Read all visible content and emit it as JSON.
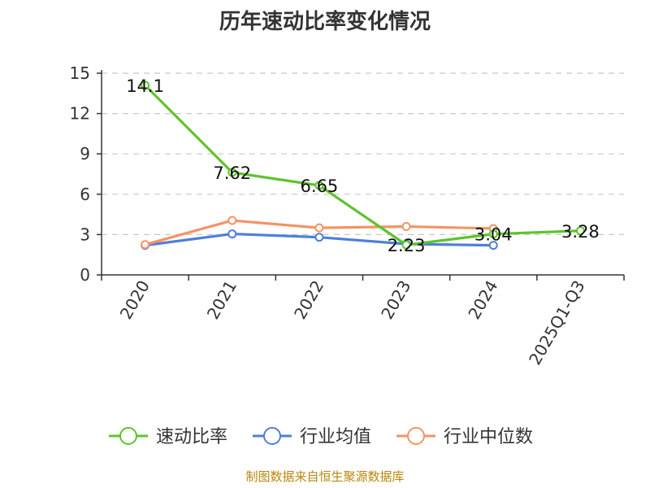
{
  "chart_data": {
    "type": "line",
    "title": "历年速动比率变化情况",
    "categories": [
      "2020",
      "2021",
      "2022",
      "2023",
      "2024",
      "2025Q1-Q3"
    ],
    "ylim": [
      0,
      15
    ],
    "yticks": [
      0,
      3,
      6,
      9,
      12,
      15
    ],
    "grid": true,
    "legend_position": "bottom",
    "series": [
      {
        "name": "速动比率",
        "color": "#5dc42b",
        "values": [
          14.1,
          7.62,
          6.65,
          2.23,
          3.04,
          3.28
        ],
        "labels": [
          "14.1",
          "7.62",
          "6.65",
          "2.23",
          "3.04",
          "3.28"
        ]
      },
      {
        "name": "行业均值",
        "color": "#4f7fd8",
        "values": [
          2.2,
          3.05,
          2.8,
          2.3,
          2.2,
          null
        ]
      },
      {
        "name": "行业中位数",
        "color": "#f39464",
        "values": [
          2.25,
          4.05,
          3.5,
          3.6,
          3.45,
          null
        ]
      }
    ]
  },
  "footer": "制图数据来自恒生聚源数据库"
}
